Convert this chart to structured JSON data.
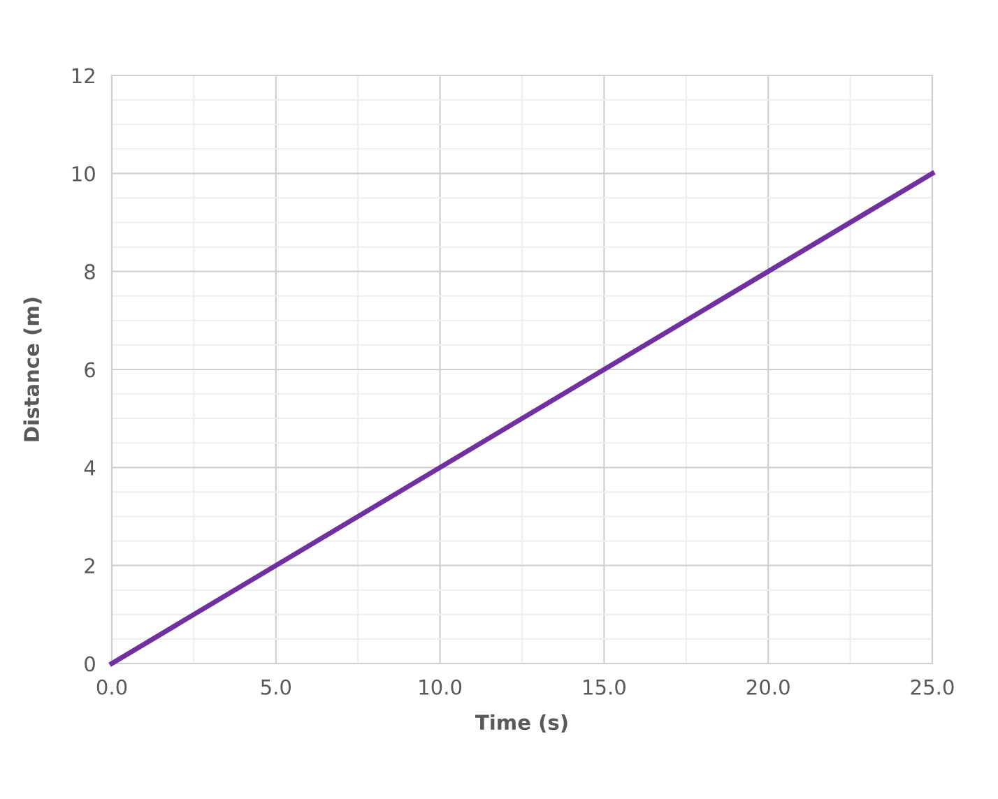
{
  "chart_data": {
    "type": "line",
    "xlabel": "Time (s)",
    "ylabel": "Distance (m)",
    "x": [
      0,
      25
    ],
    "series": [
      {
        "color": "#7030a0",
        "values": [
          0,
          10
        ]
      }
    ],
    "xlim": [
      0,
      25
    ],
    "ylim": [
      0,
      12
    ],
    "xticks": [
      {
        "value": 0,
        "label": "0.0"
      },
      {
        "value": 5,
        "label": "5.0"
      },
      {
        "value": 10,
        "label": "10.0"
      },
      {
        "value": 15,
        "label": "15.0"
      },
      {
        "value": 20,
        "label": "20.0"
      },
      {
        "value": 25,
        "label": "25.0"
      }
    ],
    "yticks": [
      0,
      2,
      4,
      6,
      8,
      10,
      12
    ],
    "grid": true,
    "marker": "none",
    "line_style": "solid"
  }
}
